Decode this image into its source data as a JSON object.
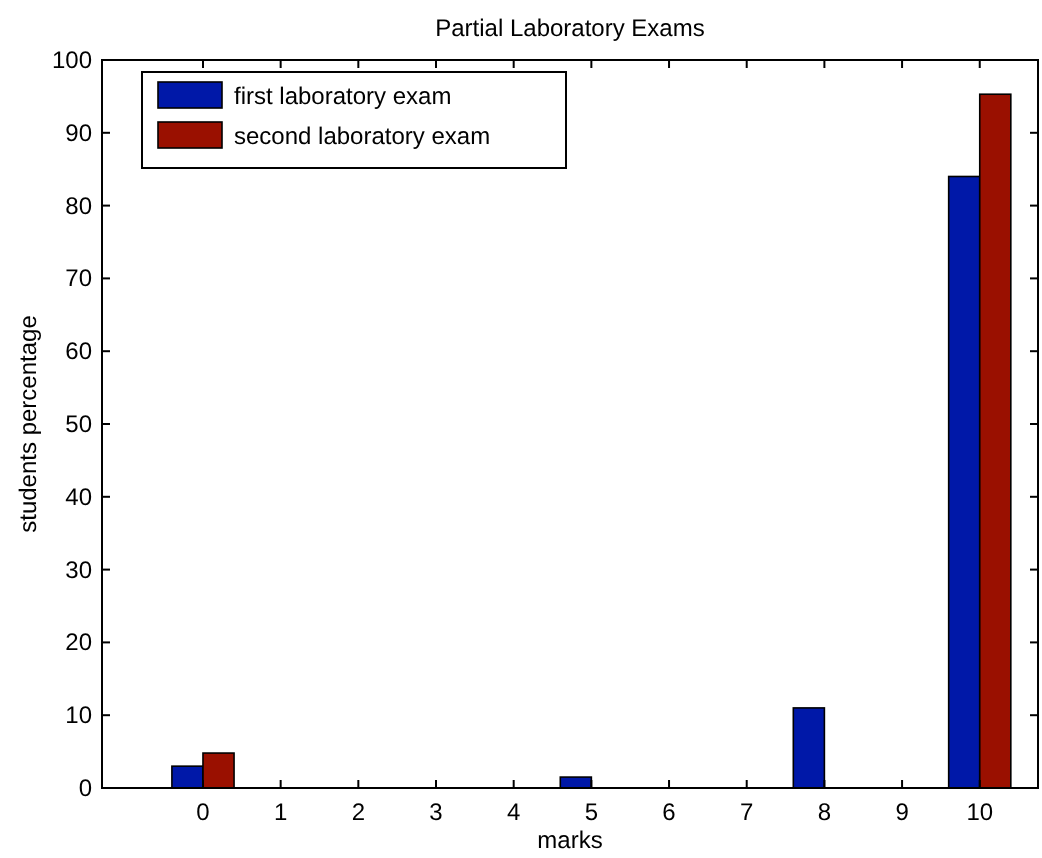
{
  "chart_data": {
    "type": "bar",
    "title": "Partial Laboratory Exams",
    "xlabel": "marks",
    "ylabel": "students percentage",
    "categories": [
      "0",
      "1",
      "2",
      "3",
      "4",
      "5",
      "6",
      "7",
      "8",
      "9",
      "10"
    ],
    "series": [
      {
        "name": "first laboratory exam",
        "color": "#0018a8",
        "values": [
          3,
          0,
          0,
          0,
          0,
          1.5,
          0,
          0,
          11,
          0,
          84
        ]
      },
      {
        "name": "second laboratory exam",
        "color": "#9a1000",
        "values": [
          4.8,
          0,
          0,
          0,
          0,
          0,
          0,
          0,
          0,
          0,
          95.3
        ]
      }
    ],
    "ylim": [
      0,
      100
    ],
    "yticks": [
      0,
      10,
      20,
      30,
      40,
      50,
      60,
      70,
      80,
      90,
      100
    ],
    "grid": false,
    "legend": "top left"
  }
}
